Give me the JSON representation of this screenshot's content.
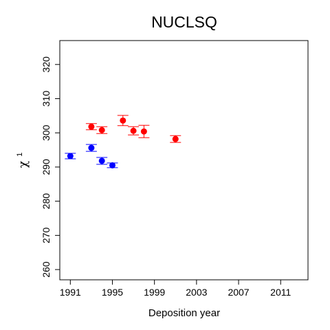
{
  "chart_data": {
    "type": "scatter",
    "title": "NUCLSQ",
    "xlabel": "Deposition year",
    "ylabel": "χ",
    "ylabel_superscript": "1",
    "xlim": [
      1990,
      2013.6
    ],
    "ylim": [
      257,
      327
    ],
    "xticks": [
      1991,
      1995,
      1999,
      2003,
      2007,
      2011
    ],
    "yticks": [
      260,
      270,
      280,
      290,
      300,
      310,
      320
    ],
    "grid": false,
    "error_bars": true,
    "series": [
      {
        "color": "#ff0000",
        "points": [
          {
            "x": 1993,
            "y": 301.8,
            "err": 0.9
          },
          {
            "x": 1994,
            "y": 300.8,
            "err": 1.0
          },
          {
            "x": 1996,
            "y": 303.6,
            "err": 1.5
          },
          {
            "x": 1997,
            "y": 300.6,
            "err": 1.2
          },
          {
            "x": 1998,
            "y": 300.4,
            "err": 1.8
          },
          {
            "x": 2001,
            "y": 298.2,
            "err": 1.0
          }
        ]
      },
      {
        "color": "#0000ff",
        "points": [
          {
            "x": 1991,
            "y": 293.2,
            "err": 0.8
          },
          {
            "x": 1993,
            "y": 295.6,
            "err": 1.0
          },
          {
            "x": 1994,
            "y": 291.8,
            "err": 1.0
          },
          {
            "x": 1995,
            "y": 290.5,
            "err": 0.7
          }
        ]
      }
    ]
  }
}
